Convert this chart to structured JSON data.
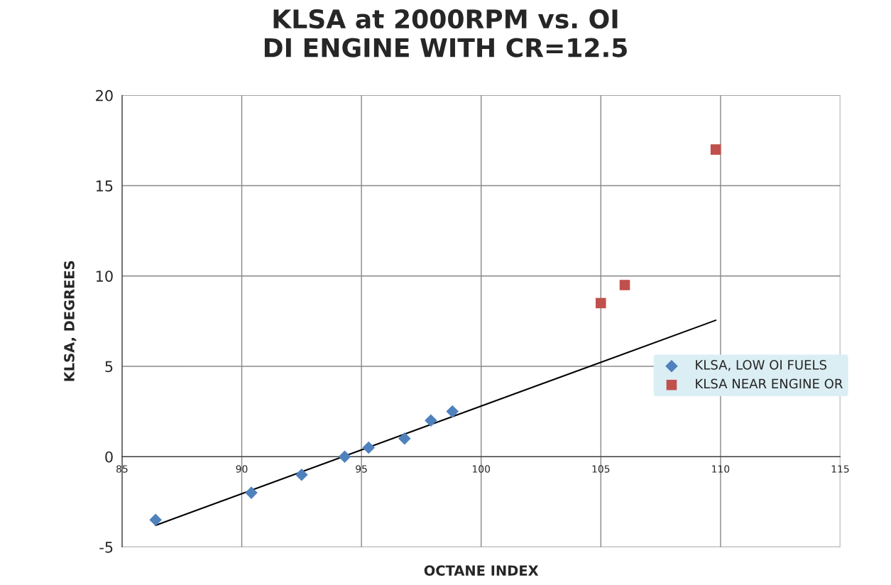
{
  "chart_data": {
    "type": "scatter",
    "title": "KLSA at 2000RPM vs. OI\nDI ENGINE WITH CR=12.5",
    "xlabel": "OCTANE INDEX",
    "ylabel": "KLSA, DEGREES",
    "xlim": [
      85,
      115
    ],
    "xticks": [
      85,
      90,
      95,
      100,
      105,
      110,
      115
    ],
    "ylim": [
      -5,
      20
    ],
    "yticks": [
      -5,
      0,
      5,
      10,
      15,
      20
    ],
    "grid": true,
    "legend": "right",
    "series": [
      {
        "name": "KLSA, LOW OI FUELS",
        "color": "#4f81bd",
        "marker": "diamond",
        "x": [
          86.4,
          90.4,
          92.5,
          94.3,
          95.3,
          96.8,
          97.9,
          98.8
        ],
        "values": [
          -3.5,
          -2,
          -1,
          0,
          0.5,
          1,
          2,
          2.5
        ]
      },
      {
        "name": "KLSA NEAR ENGINE OR",
        "color": "#c0504d",
        "marker": "square",
        "x": [
          105,
          106,
          109.8
        ],
        "values": [
          8.5,
          9.5,
          17
        ]
      },
      {
        "type": "line",
        "color": "#000000",
        "marker": "none",
        "x": [
          86.4,
          109.8
        ],
        "values": [
          -3.8,
          7.55
        ]
      }
    ]
  }
}
